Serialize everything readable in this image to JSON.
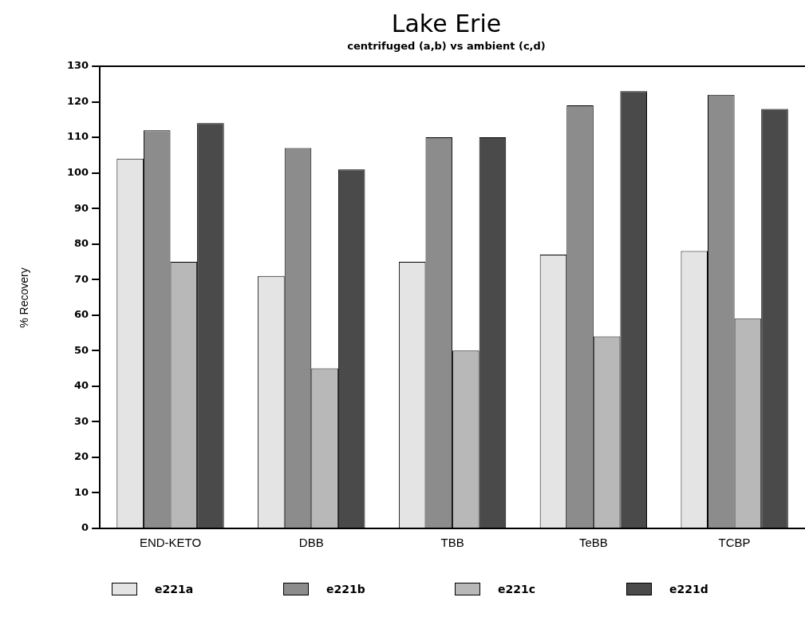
{
  "chart_data": {
    "type": "bar",
    "title": "Lake Erie",
    "subtitle": "centrifuged (a,b) vs ambient (c,d)",
    "ylabel": "% Recovery",
    "categories": [
      "END-KETO",
      "DBB",
      "TBB",
      "TeBB",
      "TCBP"
    ],
    "series": [
      {
        "name": "e221a",
        "color": "#e4e4e4",
        "values": [
          104,
          71,
          75,
          77,
          78
        ]
      },
      {
        "name": "e221b",
        "color": "#8c8c8c",
        "values": [
          112,
          107,
          110,
          119,
          122
        ]
      },
      {
        "name": "e221c",
        "color": "#b8b8b8",
        "values": [
          75,
          45,
          50,
          54,
          59
        ]
      },
      {
        "name": "e221d",
        "color": "#4a4a4a",
        "values": [
          114,
          101,
          110,
          123,
          118
        ]
      }
    ],
    "ylim": [
      0,
      130
    ],
    "yticks": [
      0,
      10,
      20,
      30,
      40,
      50,
      60,
      70,
      80,
      90,
      100,
      110,
      120,
      130
    ],
    "grid": false,
    "legend": "bottom"
  }
}
